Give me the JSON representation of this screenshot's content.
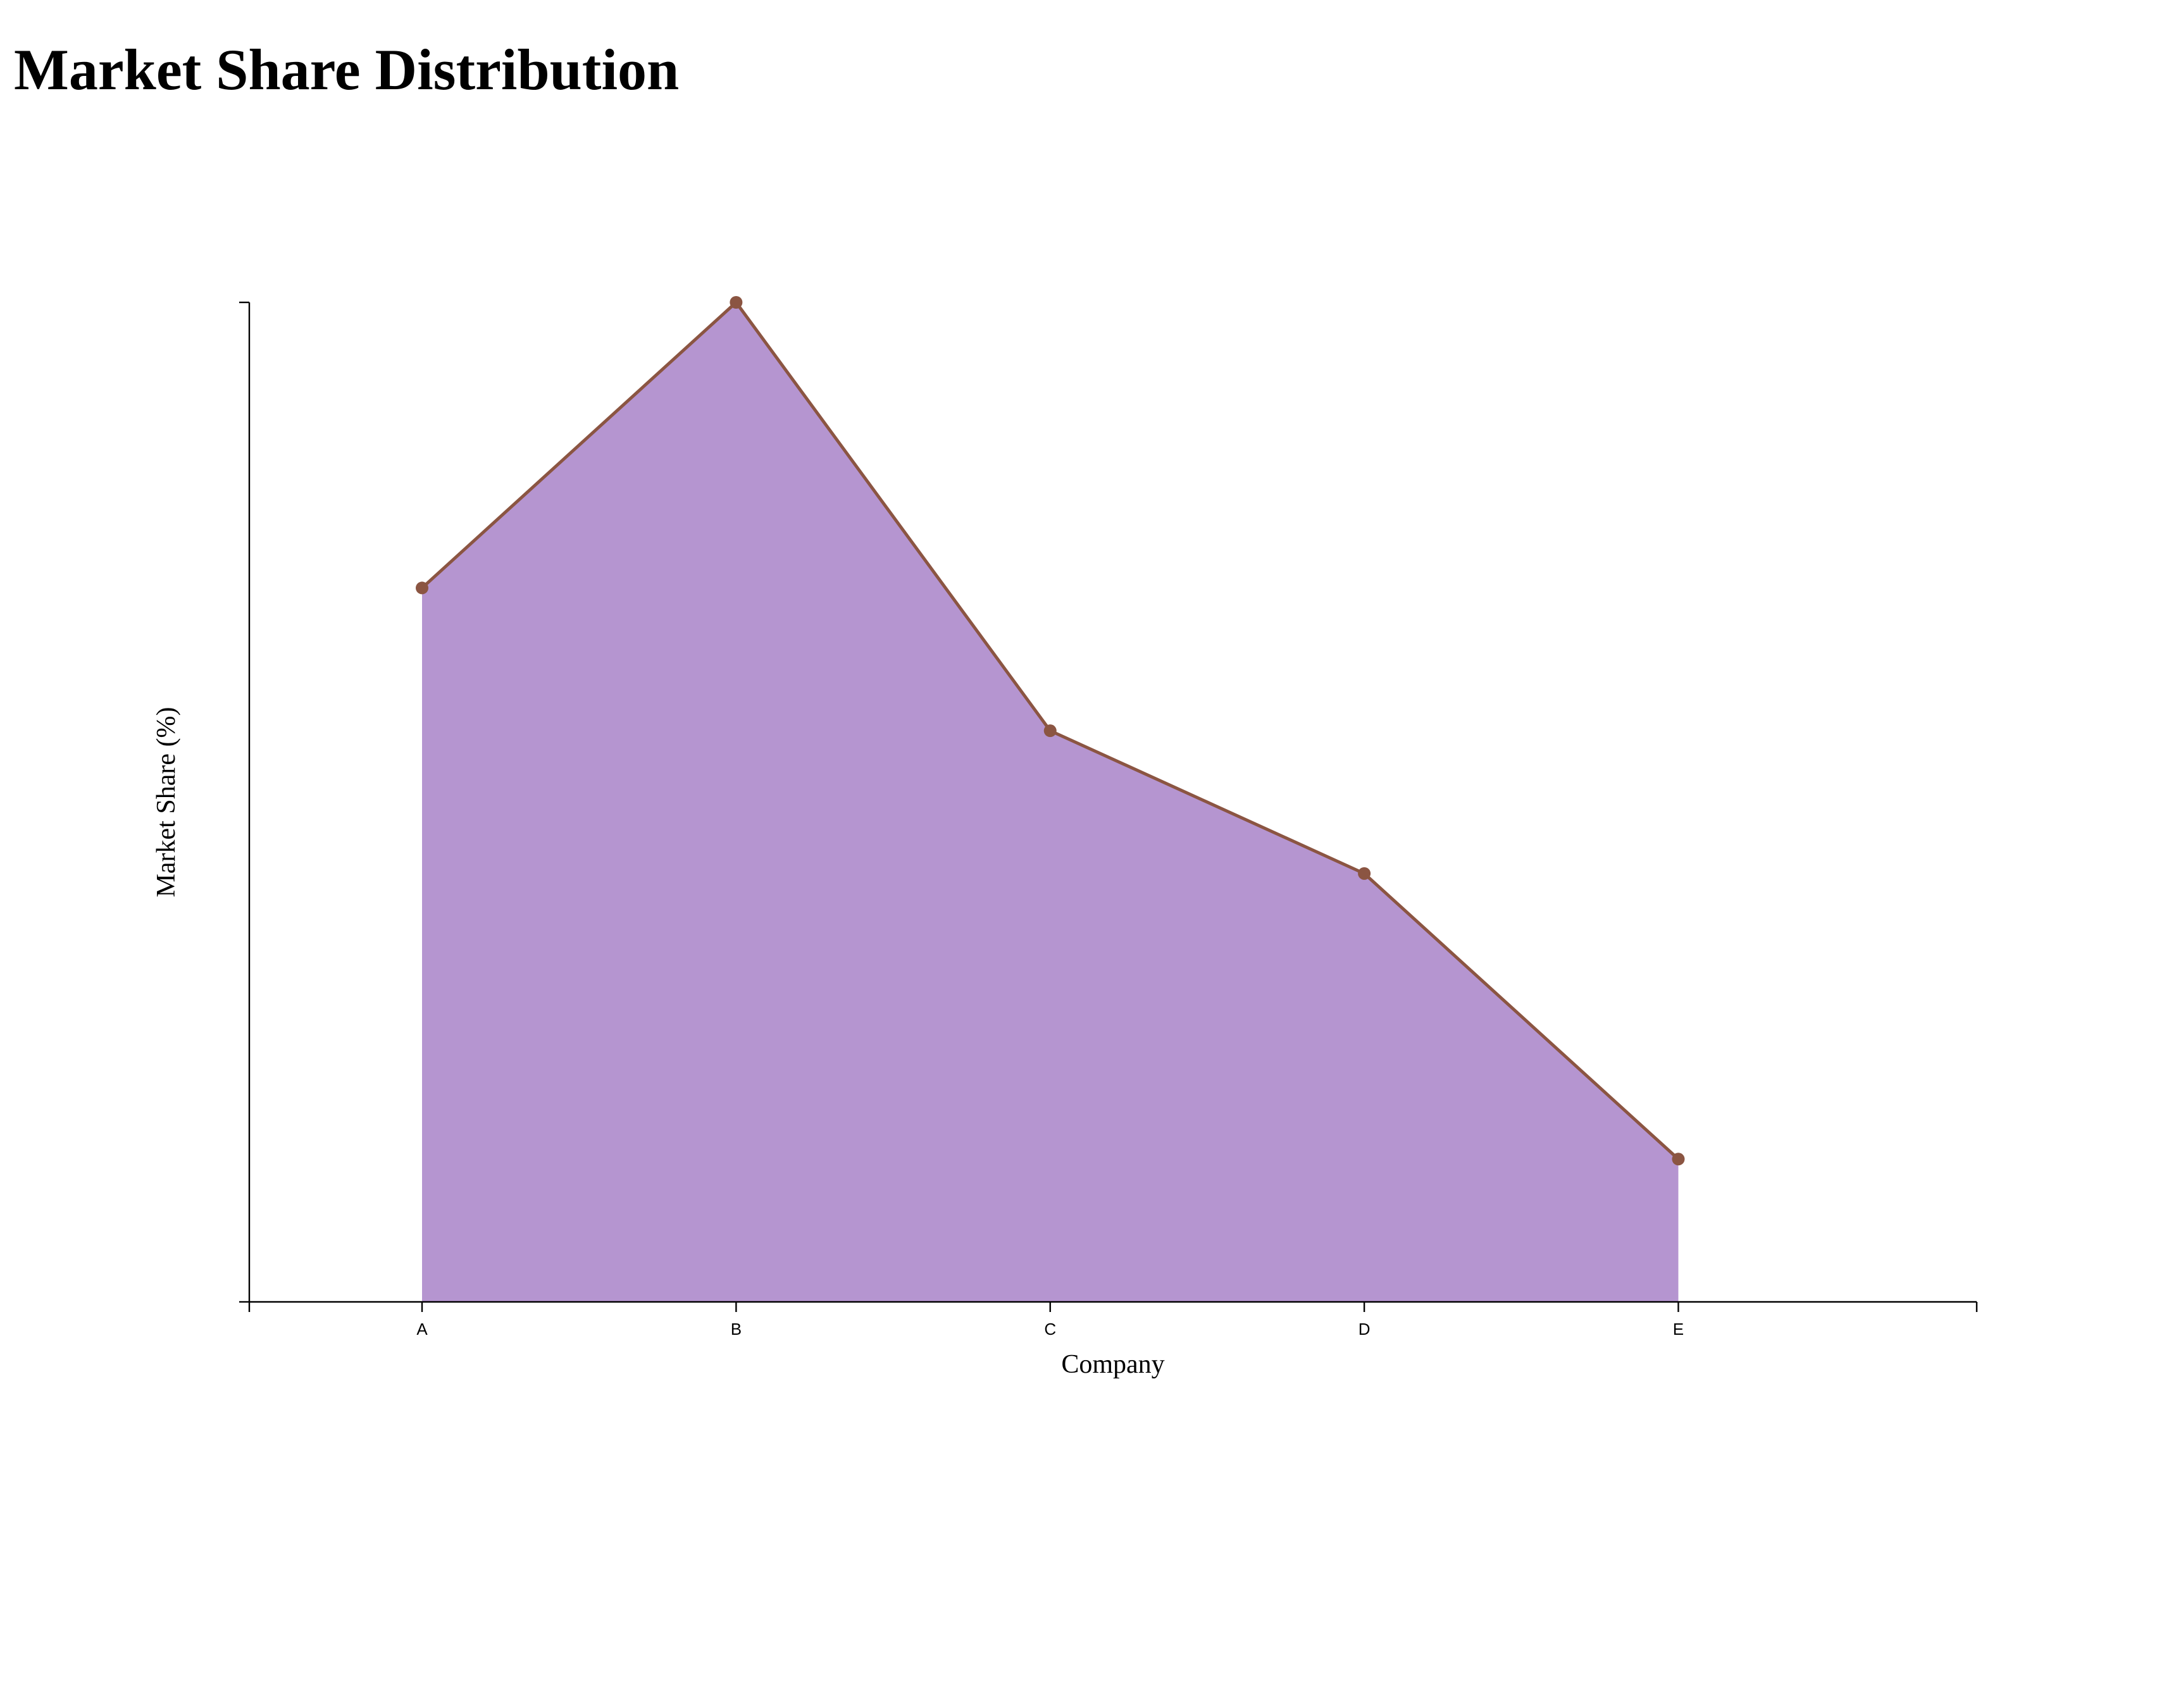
{
  "page": {
    "title": "Market Share Distribution"
  },
  "chart_data": {
    "type": "area",
    "title": "Market Share Distribution",
    "xlabel": "Company",
    "ylabel": "Market Share (%)",
    "categories": [
      "A",
      "B",
      "C",
      "D",
      "E"
    ],
    "values": [
      25,
      35,
      20,
      15,
      5
    ],
    "ylim": [
      0,
      35
    ],
    "grid": false,
    "y_tick_labels_shown": false,
    "colors": {
      "area_fill": "#b595d0",
      "line": "#8b5542",
      "marker": "#8b5542",
      "axis": "#000000"
    }
  }
}
